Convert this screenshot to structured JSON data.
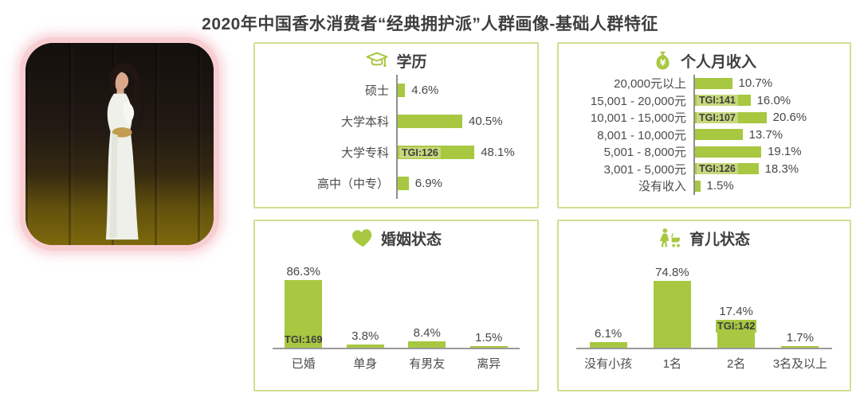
{
  "title": "2020年中国香水消费者“经典拥护派”人群画像-基础人群特征",
  "colors": {
    "bar_green": "#a7c840",
    "tgi_chip_green": "#c6d87c",
    "panel_border_green": "#d5dd92",
    "title_text": "#3e3e3e",
    "label_text": "#4c4c4c",
    "axis_gray": "#8f8f8f",
    "photo_frame_pink": "#f8ced2"
  },
  "icons": {
    "education": "graduation-cap-icon",
    "income": "money-bag-icon",
    "marriage": "heart-icon",
    "parenting": "mother-stroller-icon"
  },
  "chart_data": [
    {
      "id": "education",
      "type": "bar",
      "orientation": "horizontal",
      "title": "学历",
      "categories": [
        "硕士",
        "大学本科",
        "大学专科",
        "高中（中专）"
      ],
      "values": [
        4.6,
        40.5,
        48.1,
        6.9
      ],
      "labels": [
        "4.6%",
        "40.5%",
        "48.1%",
        "6.9%"
      ],
      "tgi": [
        null,
        null,
        "TGI:126",
        null
      ],
      "xlim": [
        0,
        50
      ],
      "grid": false,
      "legend": false
    },
    {
      "id": "income",
      "type": "bar",
      "orientation": "horizontal",
      "title": "个人月收入",
      "categories": [
        "20,000元以上",
        "15,001 - 20,000元",
        "10,001 - 15,000元",
        "8,001 - 10,000元",
        "5,001 - 8,000元",
        "3,001 - 5,000元",
        "没有收入"
      ],
      "values": [
        10.7,
        16.0,
        20.6,
        13.7,
        19.1,
        18.3,
        1.5
      ],
      "labels": [
        "10.7%",
        "16.0%",
        "20.6%",
        "13.7%",
        "19.1%",
        "18.3%",
        "1.5%"
      ],
      "tgi": [
        null,
        "TGI:141",
        "TGI:107",
        null,
        null,
        "TGI:126",
        null
      ],
      "xlim": [
        0,
        25
      ],
      "grid": false,
      "legend": false
    },
    {
      "id": "marriage",
      "type": "bar",
      "orientation": "vertical",
      "title": "婚姻状态",
      "categories": [
        "已婚",
        "单身",
        "有男友",
        "离异"
      ],
      "values": [
        86.3,
        3.8,
        8.4,
        1.5
      ],
      "labels": [
        "86.3%",
        "3.8%",
        "8.4%",
        "1.5%"
      ],
      "tgi": [
        "TGI:169",
        null,
        null,
        null
      ],
      "ylim": [
        0,
        90
      ],
      "grid": false,
      "legend": false
    },
    {
      "id": "parenting",
      "type": "bar",
      "orientation": "vertical",
      "title": "育儿状态",
      "categories": [
        "没有小孩",
        "1名",
        "2名",
        "3名及以上"
      ],
      "values": [
        6.1,
        74.8,
        17.4,
        1.7
      ],
      "labels": [
        "6.1%",
        "74.8%",
        "17.4%",
        "1.7%"
      ],
      "tgi": [
        null,
        null,
        "TGI:142",
        null
      ],
      "ylim": [
        0,
        80
      ],
      "grid": false,
      "legend": false
    }
  ]
}
